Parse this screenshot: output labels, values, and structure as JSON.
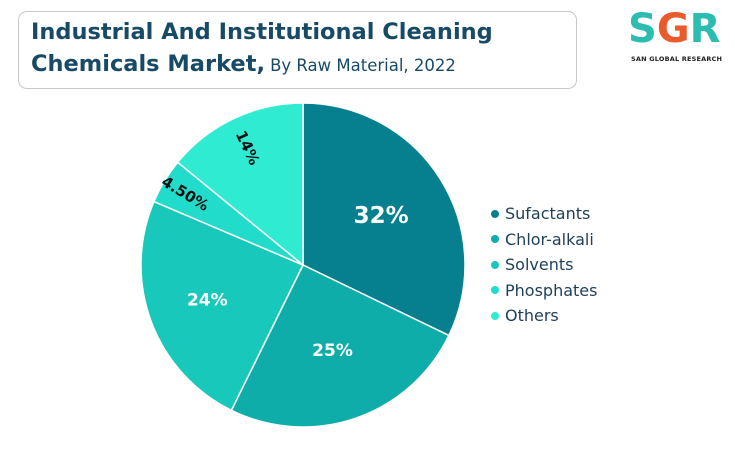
{
  "header": {
    "title_line1": "Industrial And Institutional Cleaning",
    "title_line2": "Chemicals Market,",
    "subtitle": "By Raw Material, 2022"
  },
  "logo": {
    "mark": "SGR",
    "tagline": "SAN GLOBAL RESEARCH"
  },
  "chart_data": {
    "type": "pie",
    "title": "Industrial And Institutional Cleaning Chemicals Market, By Raw Material, 2022",
    "categories": [
      "Sufactants",
      "Chlor-alkali",
      "Solvents",
      "Phosphates",
      "Others"
    ],
    "values": [
      32,
      25,
      24,
      4.5,
      14
    ],
    "labels": [
      "32%",
      "25%",
      "24%",
      "4.50%",
      "14%"
    ],
    "colors": [
      "#06808f",
      "#0fada9",
      "#18c8bb",
      "#22dccb",
      "#2eebd2"
    ],
    "legend_position": "right"
  }
}
